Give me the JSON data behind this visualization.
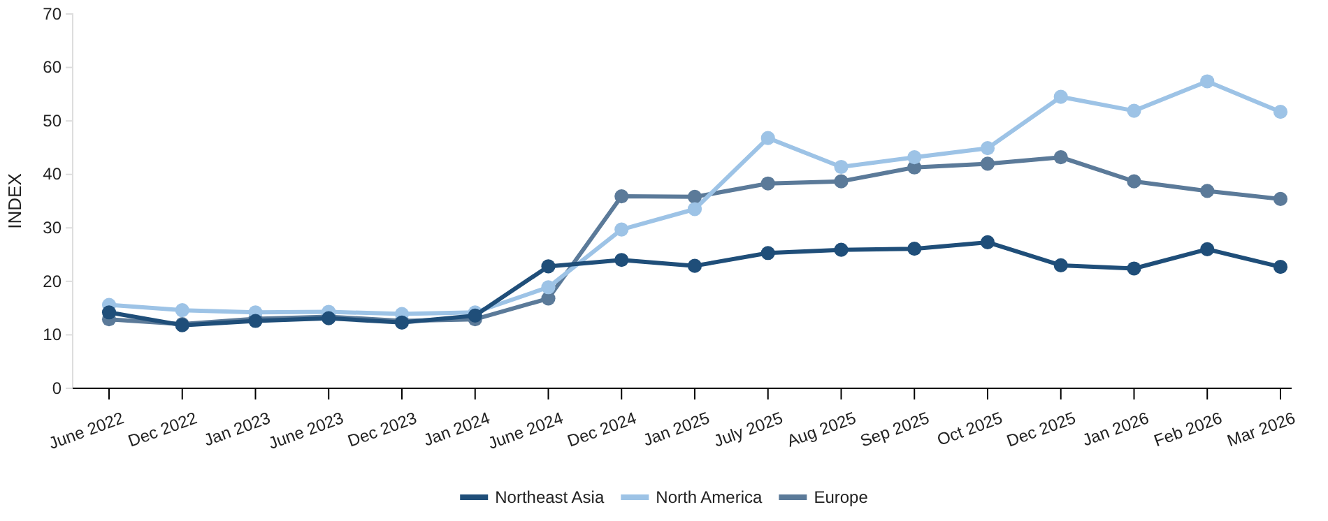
{
  "chart_data": {
    "type": "line",
    "ylabel": "INDEX",
    "categories": [
      "June 2022",
      "Dec 2022",
      "Jan 2023",
      "June 2023",
      "Dec 2023",
      "Jan 2024",
      "June 2024",
      "Dec 2024",
      "Jan 2025",
      "July 2025",
      "Aug 2025",
      "Sep 2025",
      "Oct 2025",
      "Dec 2025",
      "Jan 2026",
      "Feb 2026",
      "Mar 2026"
    ],
    "series": [
      {
        "name": "Northeast Asia",
        "color": "#1f4e79",
        "values": [
          14.2,
          11.8,
          12.6,
          13.1,
          12.3,
          13.6,
          22.8,
          24.0,
          22.9,
          25.3,
          25.9,
          26.1,
          27.3,
          23.0,
          22.4,
          26.0,
          22.7
        ]
      },
      {
        "name": "North America",
        "color": "#9dc3e6",
        "values": [
          15.6,
          14.6,
          14.2,
          14.3,
          13.9,
          14.2,
          18.9,
          29.7,
          33.5,
          46.8,
          41.4,
          43.2,
          44.9,
          54.5,
          51.9,
          57.4,
          51.7
        ]
      },
      {
        "name": "Europe",
        "color": "#5b7a99",
        "values": [
          12.9,
          12.0,
          13.0,
          13.4,
          12.6,
          12.9,
          16.8,
          35.9,
          35.8,
          38.3,
          38.7,
          41.3,
          42.0,
          43.2,
          38.7,
          36.9,
          35.4
        ]
      }
    ],
    "ylim": [
      0,
      70
    ],
    "yticks": [
      0,
      10,
      20,
      30,
      40,
      50,
      60,
      70
    ],
    "grid": false,
    "legend": "bottom",
    "marker": "circle",
    "line_style": "solid"
  }
}
